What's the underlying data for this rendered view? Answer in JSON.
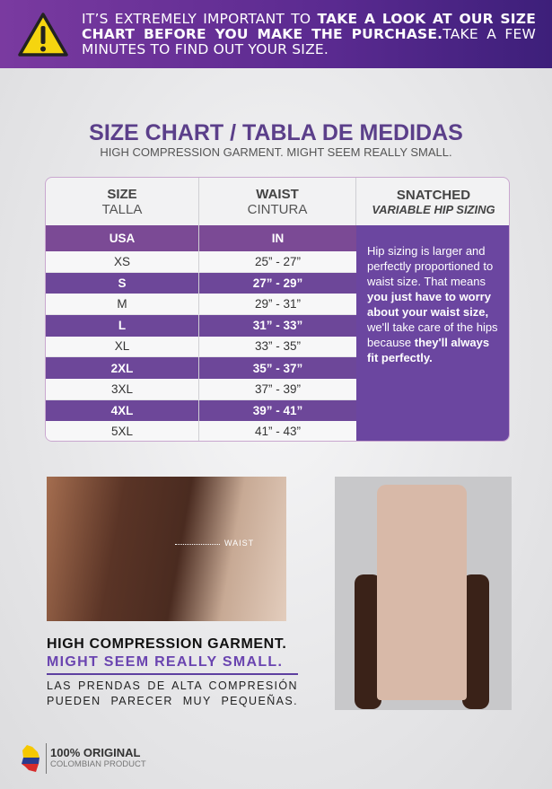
{
  "banner": {
    "icon": "warning-icon",
    "text_1": "IT’S EXTREMELY IMPORTANT TO ",
    "text_bold": "TAKE A LOOK AT OUR SIZE CHART BEFORE YOU MAKE THE PURCHASE.",
    "text_2": "TAKE A FEW MINUTES TO FIND OUT YOUR SIZE."
  },
  "title": "SIZE CHART / TABLA DE MEDIDAS",
  "subtitle": "HIGH COMPRESSION GARMENT. MIGHT SEEM REALLY SMALL.",
  "table": {
    "headers": [
      {
        "main": "SIZE",
        "sub": "TALLA"
      },
      {
        "main": "WAIST",
        "sub": "CINTURA"
      },
      {
        "main": "SNATCHED",
        "sub": "VARIABLE HIP SIZING"
      }
    ],
    "unit_row": [
      "USA",
      "IN"
    ],
    "rows": [
      [
        "XS",
        "25” - 27”"
      ],
      [
        "S",
        "27” - 29”"
      ],
      [
        "M",
        "29” - 31”"
      ],
      [
        "L",
        "31” - 33”"
      ],
      [
        "XL",
        "33” - 35”"
      ],
      [
        "2XL",
        "35” - 37”"
      ],
      [
        "3XL",
        "37” - 39”"
      ],
      [
        "4XL",
        "39” - 41”"
      ],
      [
        "5XL",
        "41” - 43”"
      ]
    ],
    "side_note": {
      "p1": "Hip sizing is larger and perfectly proportioned to waist size. That means ",
      "b1": "you just have to worry about your waist size,",
      "p2": " we'll take care of the hips because ",
      "b2": "they'll always fit perfectly."
    }
  },
  "photo_label": "WAIST",
  "notice": {
    "line1": "HIGH COMPRESSION GARMENT.",
    "line2": "MIGHT SEEM REALLY SMALL.",
    "spanish": "LAS PRENDAS DE ALTA COMPRESIÓN PUEDEN PARECER MUY PEQUEÑAS."
  },
  "badge": {
    "title": "100% ORIGINAL",
    "subtitle": "COLOMBIAN PRODUCT"
  },
  "colors": {
    "purple": "#6b46a0",
    "banner": "#5a2a90",
    "warning": "#f5d50f"
  }
}
